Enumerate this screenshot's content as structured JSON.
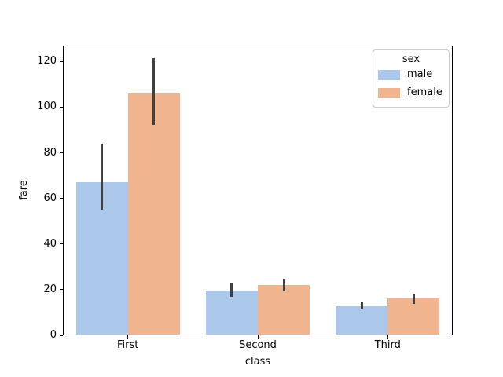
{
  "chart_data": {
    "type": "bar",
    "title": "",
    "xlabel": "class",
    "ylabel": "fare",
    "categories": [
      "First",
      "Second",
      "Third"
    ],
    "series": [
      {
        "name": "male",
        "color": "#abc8ea",
        "values": [
          67.2,
          19.7,
          12.7
        ],
        "ci": [
          [
            54.9,
            84.1
          ],
          [
            16.8,
            22.9
          ],
          [
            11.2,
            14.3
          ]
        ]
      },
      {
        "name": "female",
        "color": "#f0b48e",
        "values": [
          106.1,
          22.0,
          16.1
        ],
        "ci": [
          [
            92.1,
            121.5
          ],
          [
            19.2,
            24.9
          ],
          [
            13.9,
            18.4
          ]
        ]
      }
    ],
    "yticks": [
      0,
      20,
      40,
      60,
      80,
      100,
      120
    ],
    "ylim": [
      0,
      127
    ],
    "bar_width": 0.8,
    "errorbar_color": "#404040",
    "grid": false,
    "legend": {
      "title": "sex",
      "position": "upper right"
    }
  }
}
